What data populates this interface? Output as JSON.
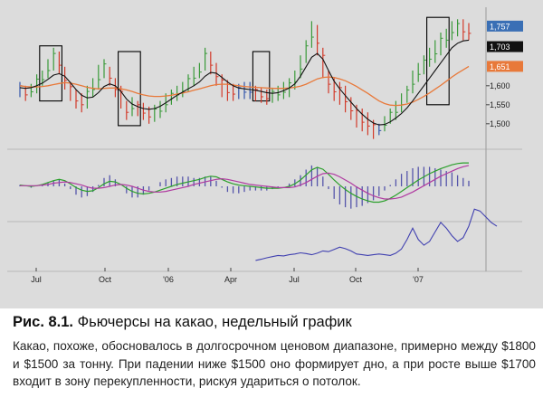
{
  "caption": {
    "figure_label": "Рис. 8.1.",
    "title": "Фьючерсы на какао, недельный график",
    "text": "Какао, похоже, обосновалось в долгосрочном ценовом диапазоне, примерно между $1800 и $1500 за тонну. При падении ниже $1500 оно формирует дно, а при росте выше $1700 входит в зону перекупленности, рискуя удариться о потолок."
  },
  "price_tags": [
    {
      "value": "1,757",
      "bg": "#3a6fb5",
      "fg": "#ffffff"
    },
    {
      "value": "1,703",
      "bg": "#111111",
      "fg": "#ffffff"
    },
    {
      "value": "1,651",
      "bg": "#e8793a",
      "fg": "#ffffff"
    }
  ],
  "colors": {
    "up_bar": "#3a9a3a",
    "down_bar": "#d23a2a",
    "neutral_bar": "#3355aa",
    "fast_ma": "#111111",
    "slow_ma": "#e8793a",
    "macd_line": "#2ca02c",
    "signal_line": "#b03aa0",
    "histogram": "#5555aa",
    "indicator_line": "#4040b0",
    "box": "#000000"
  },
  "chart_data": [
    {
      "type": "line",
      "panel": "price",
      "x_tick_labels": [
        "Jul",
        "Oct",
        "'06",
        "Apr",
        "Jul",
        "Oct",
        "'07"
      ],
      "y_tick_labels": [
        "1,600",
        "1,550",
        "1,500"
      ],
      "ylim": [
        1440,
        1790
      ],
      "bars_high": [
        1610,
        1600,
        1605,
        1630,
        1640,
        1670,
        1700,
        1690,
        1650,
        1610,
        1590,
        1580,
        1600,
        1620,
        1655,
        1670,
        1650,
        1620,
        1600,
        1560,
        1570,
        1560,
        1555,
        1545,
        1550,
        1560,
        1580,
        1590,
        1600,
        1610,
        1630,
        1650,
        1660,
        1700,
        1690,
        1660,
        1630,
        1615,
        1605,
        1605,
        1610,
        1610,
        1600,
        1595,
        1590,
        1595,
        1600,
        1610,
        1620,
        1640,
        1680,
        1720,
        1770,
        1760,
        1700,
        1640,
        1620,
        1610,
        1600,
        1570,
        1550,
        1540,
        1530,
        1510,
        1500,
        1520,
        1540,
        1560,
        1580,
        1600,
        1640,
        1660,
        1680,
        1700,
        1720,
        1740,
        1750,
        1770,
        1775,
        1775,
        1765
      ],
      "bars_low": [
        1570,
        1560,
        1570,
        1580,
        1600,
        1620,
        1640,
        1630,
        1590,
        1560,
        1540,
        1530,
        1540,
        1570,
        1590,
        1620,
        1600,
        1570,
        1540,
        1510,
        1520,
        1520,
        1510,
        1500,
        1505,
        1515,
        1530,
        1550,
        1560,
        1570,
        1585,
        1600,
        1620,
        1640,
        1630,
        1600,
        1570,
        1560,
        1560,
        1565,
        1565,
        1565,
        1560,
        1555,
        1550,
        1555,
        1560,
        1565,
        1570,
        1590,
        1620,
        1660,
        1700,
        1680,
        1620,
        1580,
        1560,
        1550,
        1530,
        1510,
        1490,
        1480,
        1470,
        1460,
        1470,
        1480,
        1500,
        1510,
        1530,
        1555,
        1580,
        1610,
        1630,
        1650,
        1660,
        1680,
        1700,
        1720,
        1730,
        1720,
        1720
      ],
      "fast_ma": [
        1595,
        1593,
        1595,
        1600,
        1607,
        1617,
        1628,
        1632,
        1625,
        1608,
        1590,
        1575,
        1568,
        1570,
        1582,
        1598,
        1605,
        1600,
        1585,
        1565,
        1552,
        1545,
        1540,
        1538,
        1540,
        1546,
        1555,
        1565,
        1575,
        1583,
        1592,
        1600,
        1610,
        1625,
        1635,
        1633,
        1622,
        1610,
        1600,
        1594,
        1592,
        1590,
        1588,
        1585,
        1582,
        1580,
        1582,
        1587,
        1594,
        1605,
        1625,
        1650,
        1675,
        1685,
        1670,
        1640,
        1612,
        1592,
        1574,
        1557,
        1540,
        1525,
        1512,
        1502,
        1497,
        1498,
        1505,
        1515,
        1527,
        1542,
        1560,
        1580,
        1600,
        1620,
        1640,
        1660,
        1680,
        1700,
        1712,
        1718,
        1720
      ],
      "slow_ma": [
        1600,
        1598,
        1597,
        1597,
        1598,
        1600,
        1603,
        1606,
        1608,
        1607,
        1604,
        1600,
        1596,
        1593,
        1592,
        1593,
        1594,
        1594,
        1592,
        1589,
        1585,
        1580,
        1576,
        1573,
        1572,
        1572,
        1573,
        1575,
        1578,
        1581,
        1584,
        1588,
        1592,
        1596,
        1600,
        1603,
        1604,
        1604,
        1602,
        1600,
        1598,
        1597,
        1596,
        1595,
        1594,
        1593,
        1593,
        1593,
        1594,
        1596,
        1599,
        1604,
        1611,
        1618,
        1622,
        1623,
        1622,
        1618,
        1613,
        1606,
        1598,
        1589,
        1580,
        1570,
        1560,
        1553,
        1549,
        1548,
        1549,
        1552,
        1557,
        1564,
        1572,
        1581,
        1591,
        1601,
        1612,
        1623,
        1633,
        1642,
        1651
      ]
    },
    {
      "type": "line",
      "panel": "macd",
      "series": [
        {
          "values": [
            0.2,
            0.1,
            0.0,
            0.1,
            0.3,
            0.6,
            0.9,
            1.1,
            0.9,
            0.4,
            -0.2,
            -0.6,
            -0.8,
            -0.7,
            -0.2,
            0.4,
            0.8,
            0.7,
            0.3,
            -0.3,
            -0.8,
            -1.1,
            -1.2,
            -1.1,
            -0.9,
            -0.6,
            -0.3,
            0.0,
            0.3,
            0.5,
            0.7,
            0.9,
            1.1,
            1.4,
            1.6,
            1.5,
            1.1,
            0.7,
            0.4,
            0.2,
            0.1,
            0.0,
            -0.1,
            -0.2,
            -0.3,
            -0.3,
            -0.3,
            -0.2,
            0.0,
            0.4,
            1.0,
            1.8,
            2.6,
            3.0,
            2.7,
            1.9,
            1.0,
            0.2,
            -0.5,
            -1.1,
            -1.6,
            -2.0,
            -2.3,
            -2.5,
            -2.5,
            -2.3,
            -1.9,
            -1.4,
            -0.8,
            -0.2,
            0.4,
            1.0,
            1.5,
            2.0,
            2.4,
            2.8,
            3.1,
            3.4,
            3.6,
            3.7,
            3.7
          ]
        },
        {
          "values": [
            0.1,
            0.1,
            0.1,
            0.1,
            0.2,
            0.3,
            0.5,
            0.6,
            0.7,
            0.6,
            0.4,
            0.2,
            -0.1,
            -0.3,
            -0.3,
            -0.2,
            0.0,
            0.2,
            0.3,
            0.2,
            0.0,
            -0.3,
            -0.6,
            -0.8,
            -0.9,
            -0.9,
            -0.8,
            -0.6,
            -0.4,
            -0.2,
            0.0,
            0.3,
            0.5,
            0.7,
            0.9,
            1.1,
            1.2,
            1.1,
            0.9,
            0.7,
            0.5,
            0.3,
            0.2,
            0.1,
            0.0,
            -0.1,
            -0.2,
            -0.2,
            -0.2,
            -0.1,
            0.2,
            0.6,
            1.1,
            1.6,
            2.0,
            2.1,
            1.9,
            1.5,
            1.0,
            0.5,
            -0.1,
            -0.6,
            -1.1,
            -1.5,
            -1.8,
            -2.0,
            -2.0,
            -1.9,
            -1.7,
            -1.3,
            -0.9,
            -0.4,
            0.1,
            0.6,
            1.1,
            1.6,
            2.0,
            2.4,
            2.8,
            3.1,
            3.3
          ]
        }
      ]
    },
    {
      "type": "line",
      "panel": "indicator",
      "start_index": 42,
      "values": [
        5,
        8,
        12,
        15,
        18,
        17,
        20,
        22,
        25,
        23,
        20,
        24,
        30,
        28,
        34,
        40,
        36,
        30,
        22,
        20,
        18,
        20,
        22,
        20,
        18,
        24,
        35,
        60,
        90,
        60,
        45,
        55,
        80,
        105,
        90,
        70,
        55,
        65,
        95,
        140,
        135,
        120,
        105,
        95
      ]
    }
  ]
}
